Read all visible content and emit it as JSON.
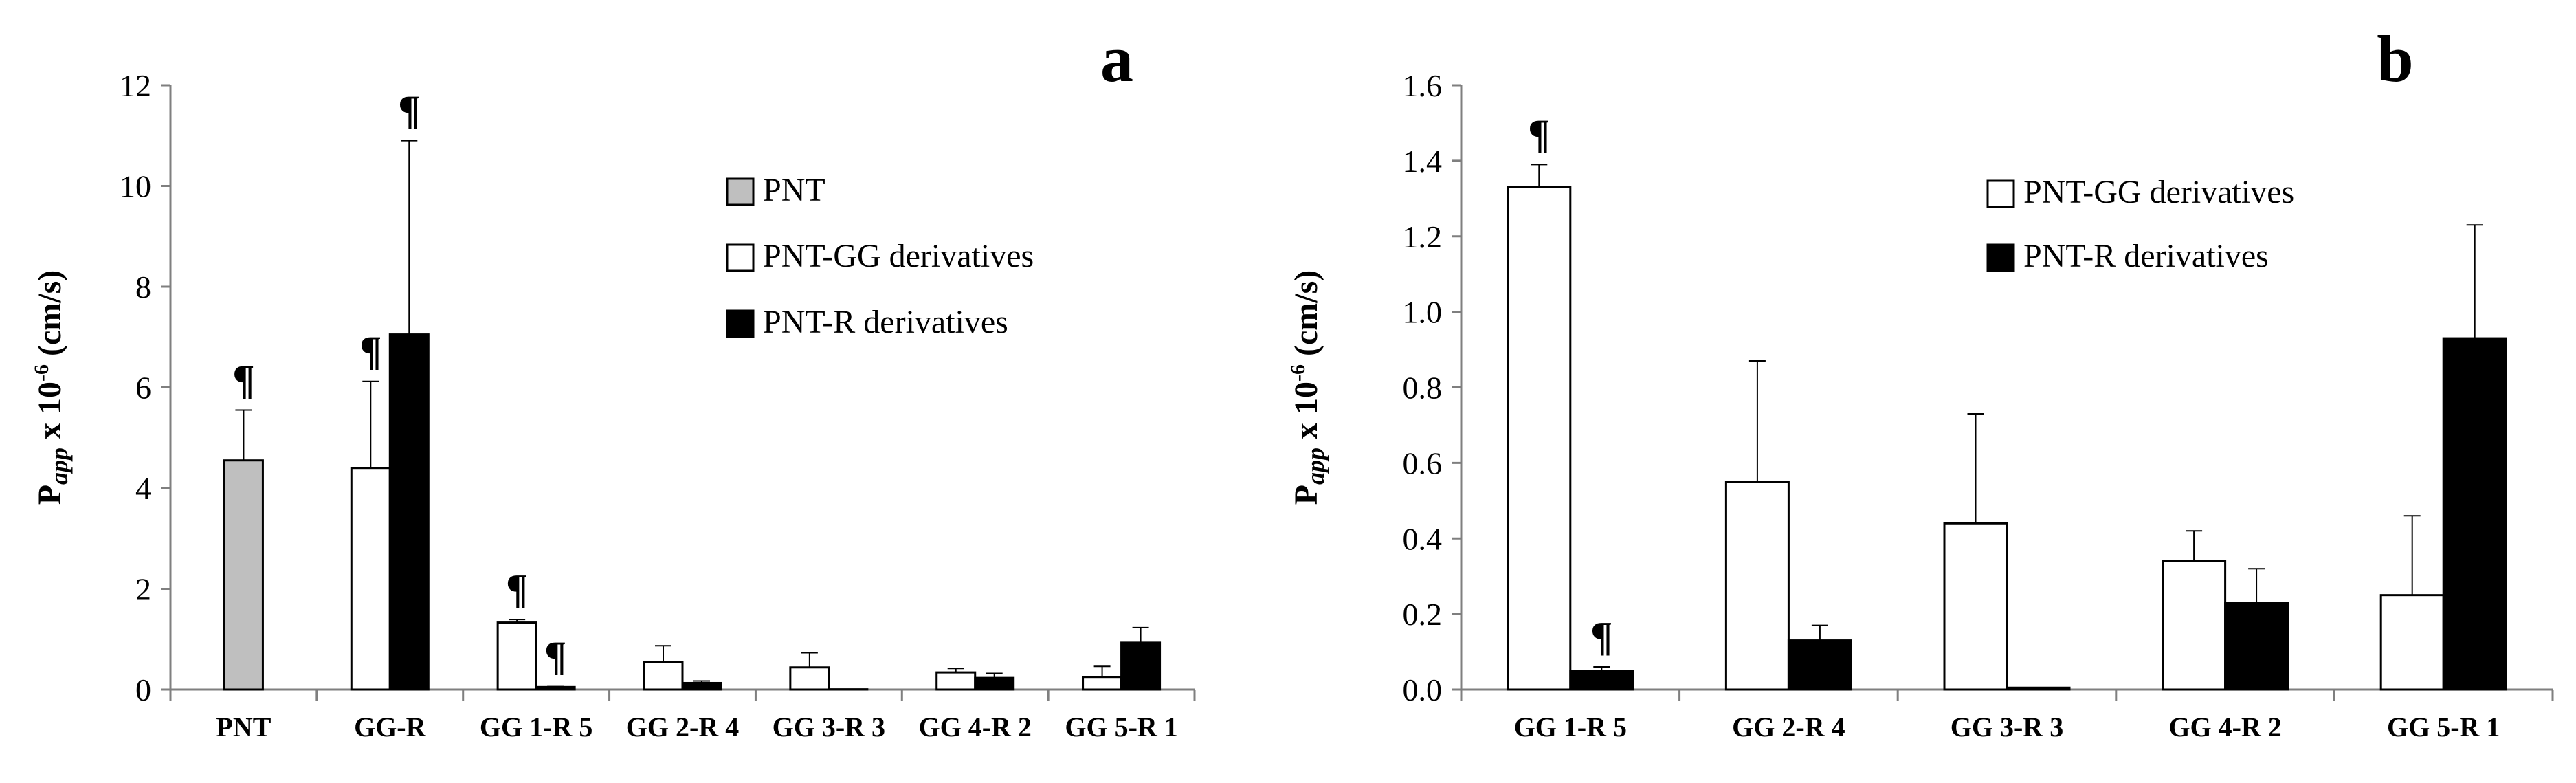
{
  "chart_data": [
    {
      "type": "bar",
      "panel_label": "a",
      "ylabel": {
        "p": "P",
        "sub": "app",
        "mid": " x 10",
        "exp": "-6",
        "unit": " (cm/s)"
      },
      "ylim": [
        0,
        12
      ],
      "yticks": [
        0,
        2,
        4,
        6,
        8,
        10,
        12
      ],
      "categories": [
        "PNT",
        "GG-R",
        "GG 1-R 5",
        "GG 2-R 4",
        "GG 3-R 3",
        "GG 4-R 2",
        "GG 5-R 1"
      ],
      "series": [
        {
          "name": "PNT",
          "color": "#bfbfbf",
          "values": [
            4.55,
            null,
            null,
            null,
            null,
            null,
            null
          ],
          "errors": [
            1.0,
            null,
            null,
            null,
            null,
            null,
            null
          ],
          "marks": [
            "¶",
            "",
            "",
            "",
            "",
            "",
            ""
          ]
        },
        {
          "name": "PNT-GG derivatives",
          "color": "#ffffff",
          "values": [
            null,
            4.4,
            1.33,
            0.55,
            0.44,
            0.34,
            0.25
          ],
          "errors": [
            null,
            1.72,
            0.06,
            0.32,
            0.29,
            0.08,
            0.21
          ],
          "marks": [
            "",
            "¶",
            "¶",
            "",
            "",
            "",
            ""
          ]
        },
        {
          "name": "PNT-R derivatives",
          "color": "#000000",
          "values": [
            null,
            7.05,
            0.05,
            0.13,
            0.005,
            0.23,
            0.93
          ],
          "errors": [
            null,
            3.85,
            0.01,
            0.04,
            0.0,
            0.09,
            0.3
          ],
          "marks": [
            "",
            "¶",
            "¶",
            "",
            "",
            "",
            ""
          ]
        }
      ]
    },
    {
      "type": "bar",
      "panel_label": "b",
      "ylabel": {
        "p": "P",
        "sub": "app",
        "mid": " x 10",
        "exp": "-6",
        "unit": " (cm/s)"
      },
      "ylim": [
        0,
        1.6
      ],
      "yticks": [
        "0.0",
        "0.2",
        "0.4",
        "0.6",
        "0.8",
        "1.0",
        "1.2",
        "1.4",
        "1.6"
      ],
      "categories": [
        "GG 1-R 5",
        "GG 2-R 4",
        "GG 3-R 3",
        "GG 4-R 2",
        "GG 5-R 1"
      ],
      "series": [
        {
          "name": "PNT-GG derivatives",
          "color": "#ffffff",
          "values": [
            1.33,
            0.55,
            0.44,
            0.34,
            0.25
          ],
          "errors": [
            0.06,
            0.32,
            0.29,
            0.08,
            0.21
          ],
          "marks": [
            "¶",
            "",
            "",
            "",
            ""
          ]
        },
        {
          "name": "PNT-R derivatives",
          "color": "#000000",
          "values": [
            0.05,
            0.13,
            0.005,
            0.23,
            0.93
          ],
          "errors": [
            0.01,
            0.04,
            0.0,
            0.09,
            0.3
          ],
          "marks": [
            "¶",
            "",
            "",
            "",
            ""
          ]
        }
      ]
    }
  ]
}
